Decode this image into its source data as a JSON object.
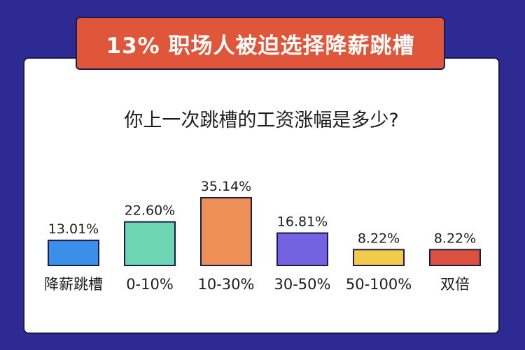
{
  "banner": {
    "title": "13% 职场人被迫选择降薪跳槽"
  },
  "question": "你上一次跳槽的工资涨幅是多少?",
  "chart_data": {
    "type": "bar",
    "categories": [
      "降薪跳槽",
      "0-10%",
      "10-30%",
      "30-50%",
      "50-100%",
      "双倍"
    ],
    "values": [
      13.01,
      22.6,
      35.14,
      16.81,
      8.22,
      8.22
    ],
    "value_labels": [
      "13.01%",
      "22.60%",
      "35.14%",
      "16.81%",
      "8.22%",
      "8.22%"
    ],
    "unit": "%",
    "ylim": [
      0,
      35.14
    ],
    "grid": false,
    "colors": [
      "#3b8fe8",
      "#6fd6b4",
      "#ee8f56",
      "#7462e0",
      "#f2cb4a",
      "#db503f"
    ],
    "bar_border_color": "#1d1b4a"
  }
}
